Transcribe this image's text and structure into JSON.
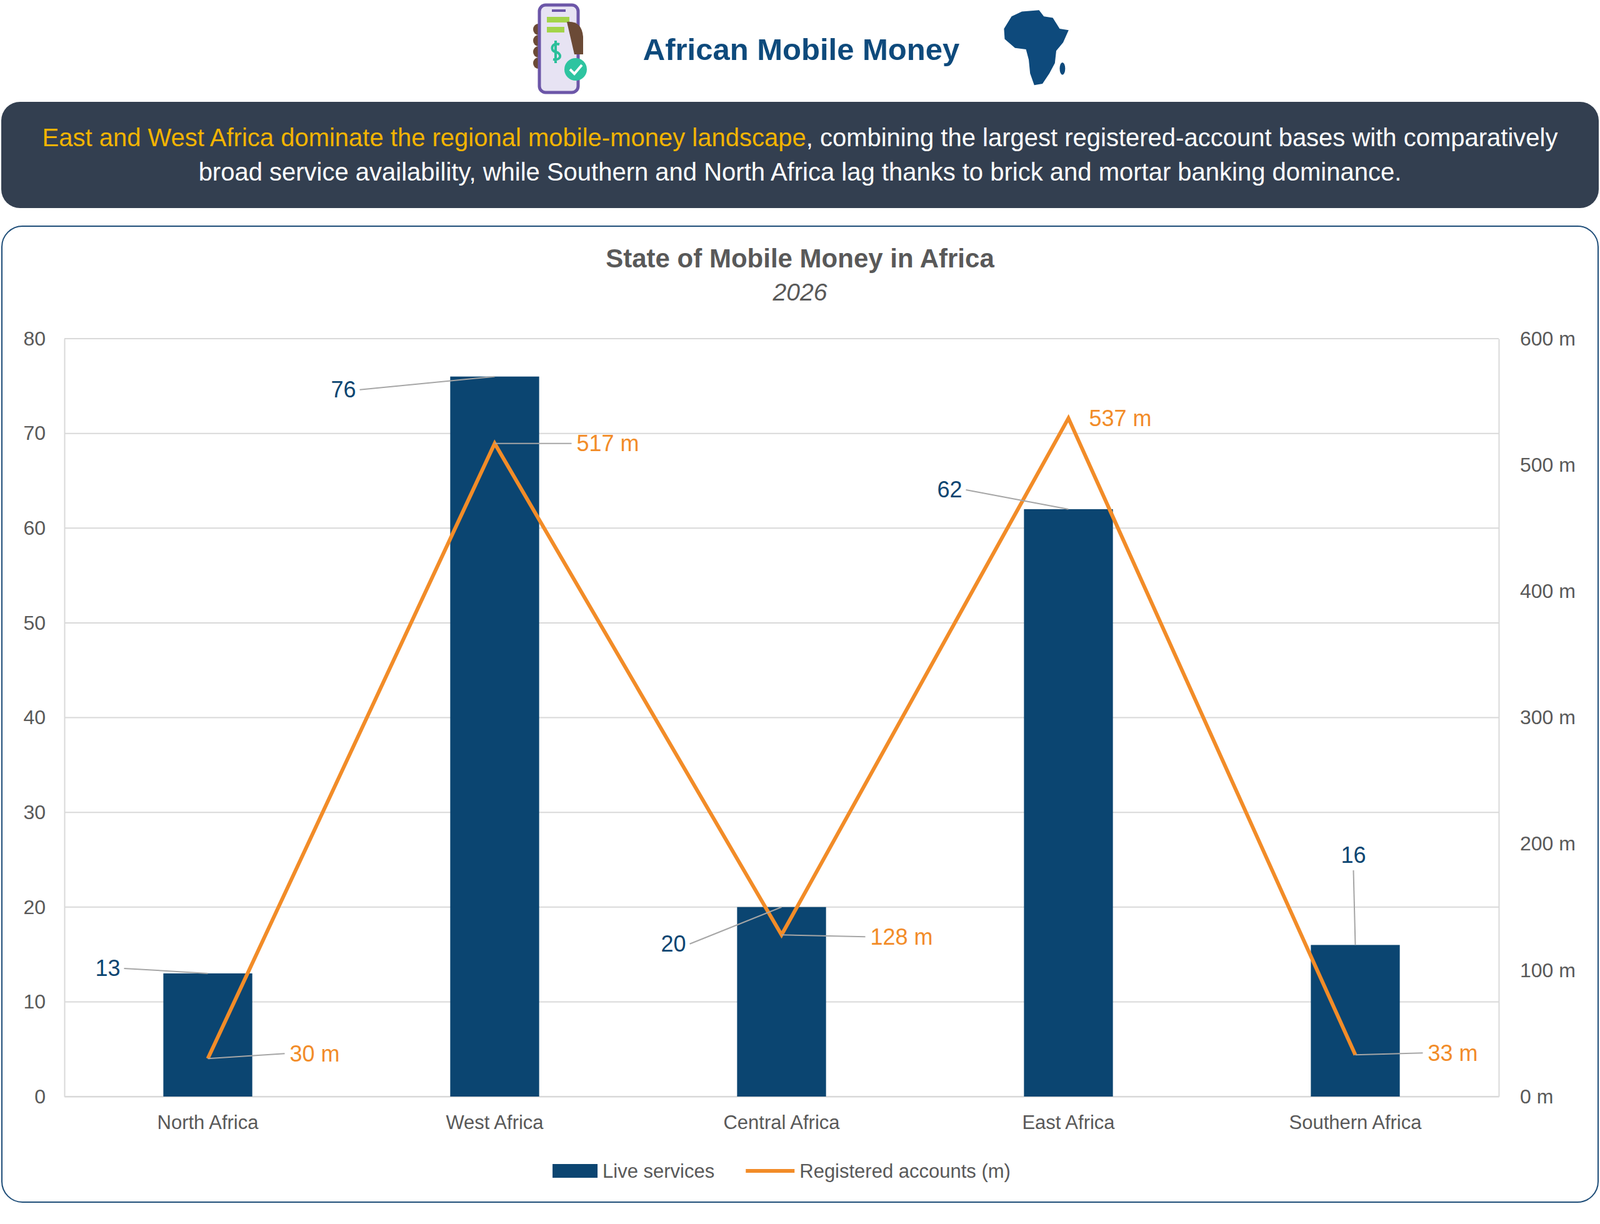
{
  "header": {
    "title": "African Mobile Money",
    "banner": {
      "highlight": "East and West Africa dominate the regional mobile-money landscape",
      "text": ", combining the largest registered-account bases with comparatively broad service availability, while Southern and North Africa lag thanks to brick and mortar banking dominance."
    }
  },
  "chart_data": {
    "type": "bar",
    "title": "State of Mobile Money in Africa",
    "subtitle": "2026",
    "categories": [
      "North Africa",
      "West Africa",
      "Central Africa",
      "East Africa",
      "Southern Africa"
    ],
    "series": [
      {
        "name": "Live services",
        "type": "bar",
        "color": "#0b4571",
        "values": [
          13,
          76,
          20,
          62,
          16
        ]
      },
      {
        "name": "Registered accounts (m)",
        "type": "line",
        "axis": "y2",
        "color": "#f28c28",
        "values": [
          30,
          517,
          128,
          537,
          33
        ],
        "value_labels": [
          "30 m",
          "517 m",
          "128 m",
          "537 m",
          "33 m"
        ]
      }
    ],
    "ylim": [
      0,
      80
    ],
    "yticks": [
      0,
      10,
      20,
      30,
      40,
      50,
      60,
      70,
      80
    ],
    "y2lim": [
      0,
      600
    ],
    "y2ticks": [
      {
        "value": 0,
        "label": "0 m"
      },
      {
        "value": 100,
        "label": "100 m"
      },
      {
        "value": 200,
        "label": "200 m"
      },
      {
        "value": 300,
        "label": "300 m"
      },
      {
        "value": 400,
        "label": "400 m"
      },
      {
        "value": 500,
        "label": "500 m"
      },
      {
        "value": 600,
        "label": "600 m"
      }
    ],
    "grid": true,
    "legend": "bottom",
    "data_labels": true
  }
}
